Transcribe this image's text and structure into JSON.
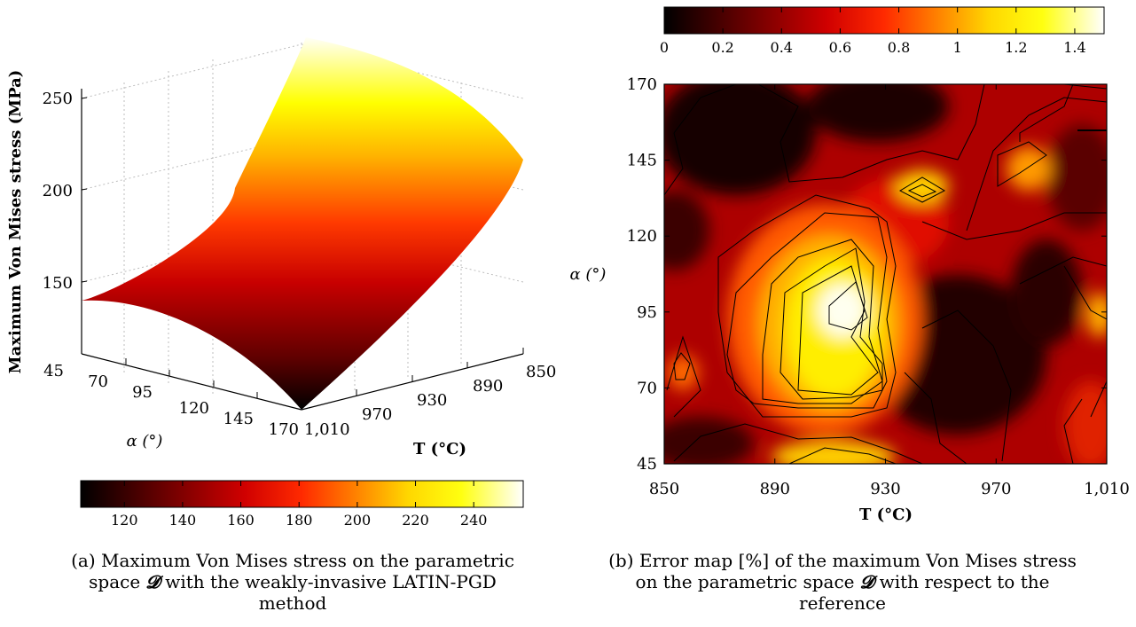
{
  "chart_data": [
    {
      "type": "surface3d",
      "panel": "(a)",
      "zlabel": "Maximum Von Mises stress (MPa)",
      "xlabel_alpha": "α (°)",
      "ylabel_T": "T (°C)",
      "alpha_ticks": [
        "45",
        "70",
        "95",
        "120",
        "145",
        "170"
      ],
      "T_ticks": [
        "850",
        "890",
        "930",
        "970",
        "1,010"
      ],
      "z_ticks": [
        "150",
        "200",
        "250"
      ],
      "alpha_range": [
        45,
        170
      ],
      "T_range": [
        850,
        1010
      ],
      "z_range": [
        110,
        265
      ],
      "colorbar": {
        "range": [
          105,
          257
        ],
        "ticks": [
          "120",
          "140",
          "160",
          "180",
          "200",
          "220",
          "240"
        ],
        "colormap": "hot"
      },
      "surface_corners": [
        {
          "alpha": 45,
          "T": 1010,
          "stress": 137
        },
        {
          "alpha": 170,
          "T": 1010,
          "stress": 106
        },
        {
          "alpha": 45,
          "T": 850,
          "stress": 260
        },
        {
          "alpha": 170,
          "T": 850,
          "stress": 212
        }
      ],
      "grid": true
    },
    {
      "type": "heatmap",
      "panel": "(b)",
      "xlabel": "T (°C)",
      "ylabel": "α (°)",
      "x_ticks": [
        "850",
        "890",
        "930",
        "970",
        "1,010"
      ],
      "y_ticks": [
        "45",
        "70",
        "95",
        "120",
        "145",
        "170"
      ],
      "x_range": [
        850,
        1010
      ],
      "y_range": [
        45,
        170
      ],
      "colorbar": {
        "range": [
          0,
          1.5
        ],
        "ticks": [
          "0",
          "0.2",
          "0.4",
          "0.6",
          "0.8",
          "1",
          "1.2",
          "1.4"
        ],
        "colormap": "hot",
        "position": "top"
      },
      "contours": true,
      "hotspots": [
        {
          "T": 918,
          "alpha": 93,
          "error": 1.45
        },
        {
          "T": 910,
          "alpha": 82,
          "error": 1.2
        },
        {
          "T": 950,
          "alpha": 136,
          "error": 0.8
        },
        {
          "T": 983,
          "alpha": 140,
          "error": 0.7
        },
        {
          "T": 860,
          "alpha": 72,
          "error": 0.6
        },
        {
          "T": 925,
          "alpha": 47,
          "error": 0.9
        },
        {
          "T": 1008,
          "alpha": 95,
          "error": 0.7
        }
      ]
    }
  ],
  "captions": {
    "a": [
      "(a) Maximum Von Mises stress on the parametric",
      "space",
      "with the weakly-invasive LATIN-PGD",
      "method"
    ],
    "b": [
      "(b) Error map [%] of the maximum Von Mises stress",
      "on the parametric space",
      "with respect to the",
      "reference"
    ],
    "math_symbol": "𝓓"
  }
}
